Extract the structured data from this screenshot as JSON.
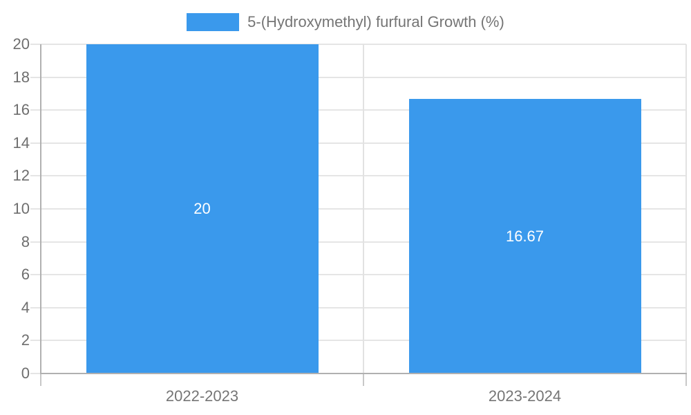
{
  "chart_data": {
    "type": "bar",
    "title": "",
    "xlabel": "",
    "ylabel": "",
    "categories": [
      "2022-2023",
      "2023-2024"
    ],
    "series": [
      {
        "name": "5-(Hydroxymethyl) furfural Growth (%)",
        "values": [
          20,
          16.67
        ],
        "value_labels": [
          "20",
          "16.67"
        ],
        "color": "#3a99ec"
      }
    ],
    "ylim": [
      0,
      20
    ],
    "ytick_step": 2,
    "yticks": [
      0,
      2,
      4,
      6,
      8,
      10,
      12,
      14,
      16,
      18,
      20
    ],
    "grid": true,
    "legend_position": "top-center",
    "value_label_position": "center-inside"
  },
  "legend": {
    "label": "5-(Hydroxymethyl) furfural Growth (%)"
  },
  "colors": {
    "bar": "#3a99ec",
    "gridline": "#e5e5e5",
    "separator": "#e2e2e2",
    "axis": "#b0b0b0",
    "below_axis_tick": "#c8c8c8",
    "y_label_text": "#6e6e6e",
    "x_label_text": "#757575",
    "legend_text": "#757575",
    "value_label_text": "#ffffff",
    "background": "#ffffff"
  }
}
